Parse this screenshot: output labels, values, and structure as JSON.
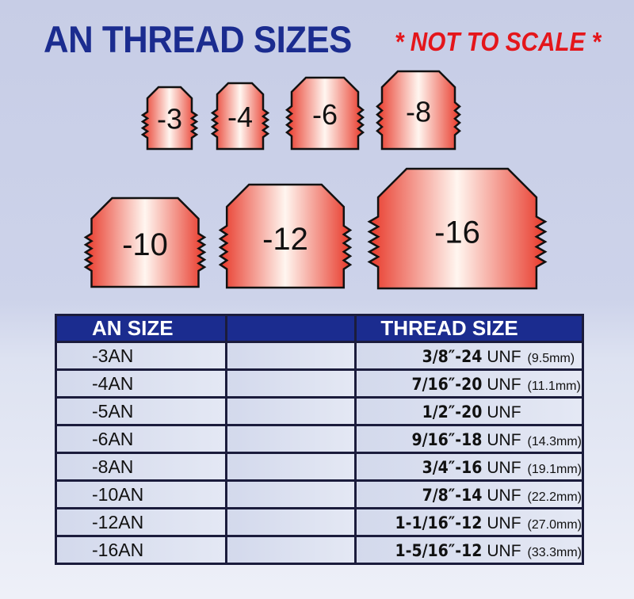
{
  "title": "AN THREAD SIZES",
  "note": "* NOT TO SCALE *",
  "colors": {
    "title": "#1b2c8f",
    "note": "#e4161b",
    "header_bg": "#1b2c8f",
    "fitting_edge": "#e8392a",
    "fitting_center": "#ffffff"
  },
  "fittings": [
    "-3",
    "-4",
    "-6",
    "-8",
    "-10",
    "-12",
    "-16"
  ],
  "table": {
    "headers": [
      "AN SIZE",
      "",
      "THREAD SIZE"
    ],
    "rows": [
      {
        "an": "-3AN",
        "thread": "3/8″-24",
        "unf": "UNF",
        "mm": "(9.5mm)"
      },
      {
        "an": "-4AN",
        "thread": "7/16″-20",
        "unf": "UNF",
        "mm": "(11.1mm)"
      },
      {
        "an": "-5AN",
        "thread": "1/2″-20",
        "unf": "UNF",
        "mm": ""
      },
      {
        "an": "-6AN",
        "thread": "9/16″-18",
        "unf": "UNF",
        "mm": "(14.3mm)"
      },
      {
        "an": "-8AN",
        "thread": "3/4″-16",
        "unf": "UNF",
        "mm": "(19.1mm)"
      },
      {
        "an": "-10AN",
        "thread": "7/8″-14",
        "unf": "UNF",
        "mm": "(22.2mm)"
      },
      {
        "an": "-12AN",
        "thread": "1-1/16″-12",
        "unf": "UNF",
        "mm": "(27.0mm)"
      },
      {
        "an": "-16AN",
        "thread": "1-5/16″-12",
        "unf": "UNF",
        "mm": "(33.3mm)"
      }
    ]
  }
}
